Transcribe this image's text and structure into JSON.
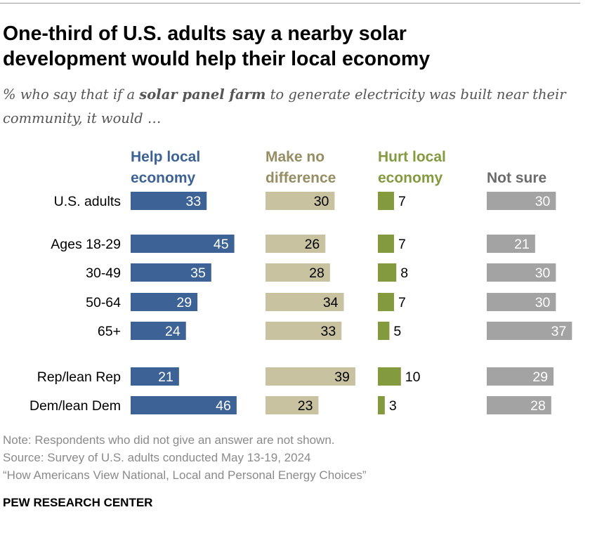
{
  "title_line1": "One-third of U.S. adults say a nearby solar",
  "title_line2": "development would help their local economy",
  "subtitle_pre": "% who say that if a ",
  "subtitle_bold": "solar panel farm",
  "subtitle_post": " to generate electricity was built near their community, it would …",
  "chart_data": {
    "type": "bar",
    "orientation": "horizontal",
    "categories": [
      "U.S. adults",
      "Ages 18-29",
      "30-49",
      "50-64",
      "65+",
      "Rep/lean Rep",
      "Dem/lean Dem"
    ],
    "series": [
      {
        "name": "Help local economy",
        "label_lines": [
          "Help local",
          "economy"
        ],
        "color": "#3c6296",
        "values": [
          33,
          45,
          35,
          29,
          24,
          21,
          46
        ]
      },
      {
        "name": "Make no difference",
        "label_lines": [
          "Make no",
          "difference"
        ],
        "color": "#c9c2a1",
        "values": [
          30,
          26,
          28,
          34,
          33,
          39,
          23
        ]
      },
      {
        "name": "Hurt local economy",
        "label_lines": [
          "Hurt local",
          "economy"
        ],
        "color": "#849a3f",
        "values": [
          7,
          7,
          8,
          7,
          5,
          10,
          3
        ]
      },
      {
        "name": "Not sure",
        "label_lines": [
          "Not sure"
        ],
        "color": "#a3a3a3",
        "values": [
          30,
          21,
          30,
          30,
          37,
          29,
          28
        ]
      }
    ],
    "header_colors": [
      "#3c6296",
      "#968d62",
      "#849a3f",
      "#6b6b6b"
    ]
  },
  "note": "Note: Respondents who did not give an answer are not shown.",
  "source": "Source: Survey of U.S. adults conducted May 13-19, 2024",
  "report": "“How Americans View National, Local and Personal Energy Choices”",
  "brand": "PEW RESEARCH CENTER"
}
